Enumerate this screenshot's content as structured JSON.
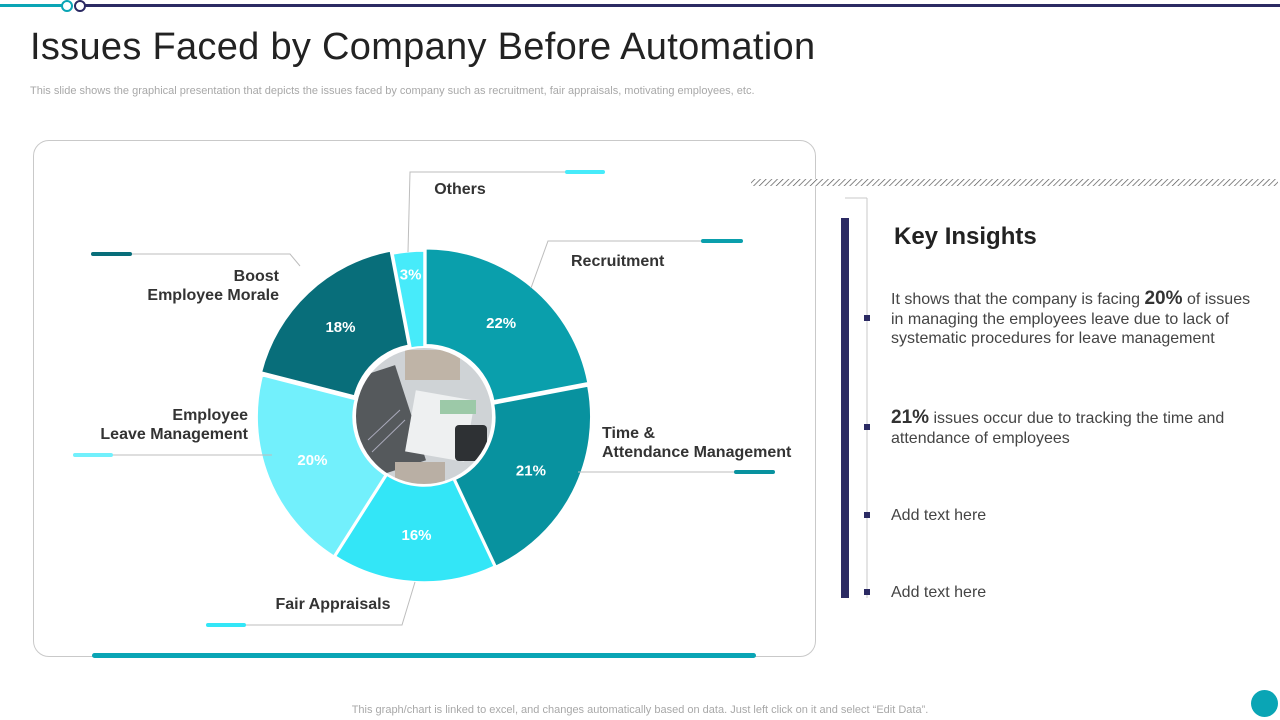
{
  "title": "Issues Faced by Company Before Automation",
  "subtitle": "This slide shows the graphical presentation that depicts the issues faced by company such as recruitment, fair appraisals, motivating employees, etc.",
  "chart_data": {
    "type": "pie",
    "variant": "donut",
    "categories": [
      "Recruitment",
      "Time & Attendance Management",
      "Fair Appraisals",
      "Employee Leave Management",
      "Boost Employee Morale",
      "Others"
    ],
    "values": [
      22,
      21,
      16,
      20,
      18,
      3
    ],
    "value_labels": [
      "22%",
      "21%",
      "16%",
      "20%",
      "18%",
      "3%"
    ],
    "label_lines": [
      [
        "Recruitment"
      ],
      [
        "Time &",
        "Attendance Management"
      ],
      [
        "Fair  Appraisals"
      ],
      [
        "Employee",
        "Leave Management"
      ],
      [
        "Boost",
        "Employee Morale"
      ],
      [
        "Others"
      ]
    ],
    "colors": [
      "#0a9fac",
      "#08929f",
      "#33e6f7",
      "#72f0fc",
      "#086e7a",
      "#47ebfa"
    ]
  },
  "insights": {
    "title": "Key Insights",
    "items": [
      {
        "pre": "It shows that the company is facing ",
        "highlight": "20%",
        "post": " of issues in managing the employees leave due to lack of systematic procedures for leave management"
      },
      {
        "pre": "",
        "highlight": "21%",
        "post": " issues occur due to tracking the time and attendance of employees"
      },
      {
        "pre": "Add text here",
        "highlight": "",
        "post": ""
      },
      {
        "pre": "Add text here",
        "highlight": "",
        "post": ""
      }
    ]
  },
  "footer": "This graph/chart is linked to excel,  and changes automatically based on data. Just left click on it and select “Edit Data”.",
  "colors": {
    "accent": "#0aa5b5",
    "navy": "#2b2a63"
  }
}
